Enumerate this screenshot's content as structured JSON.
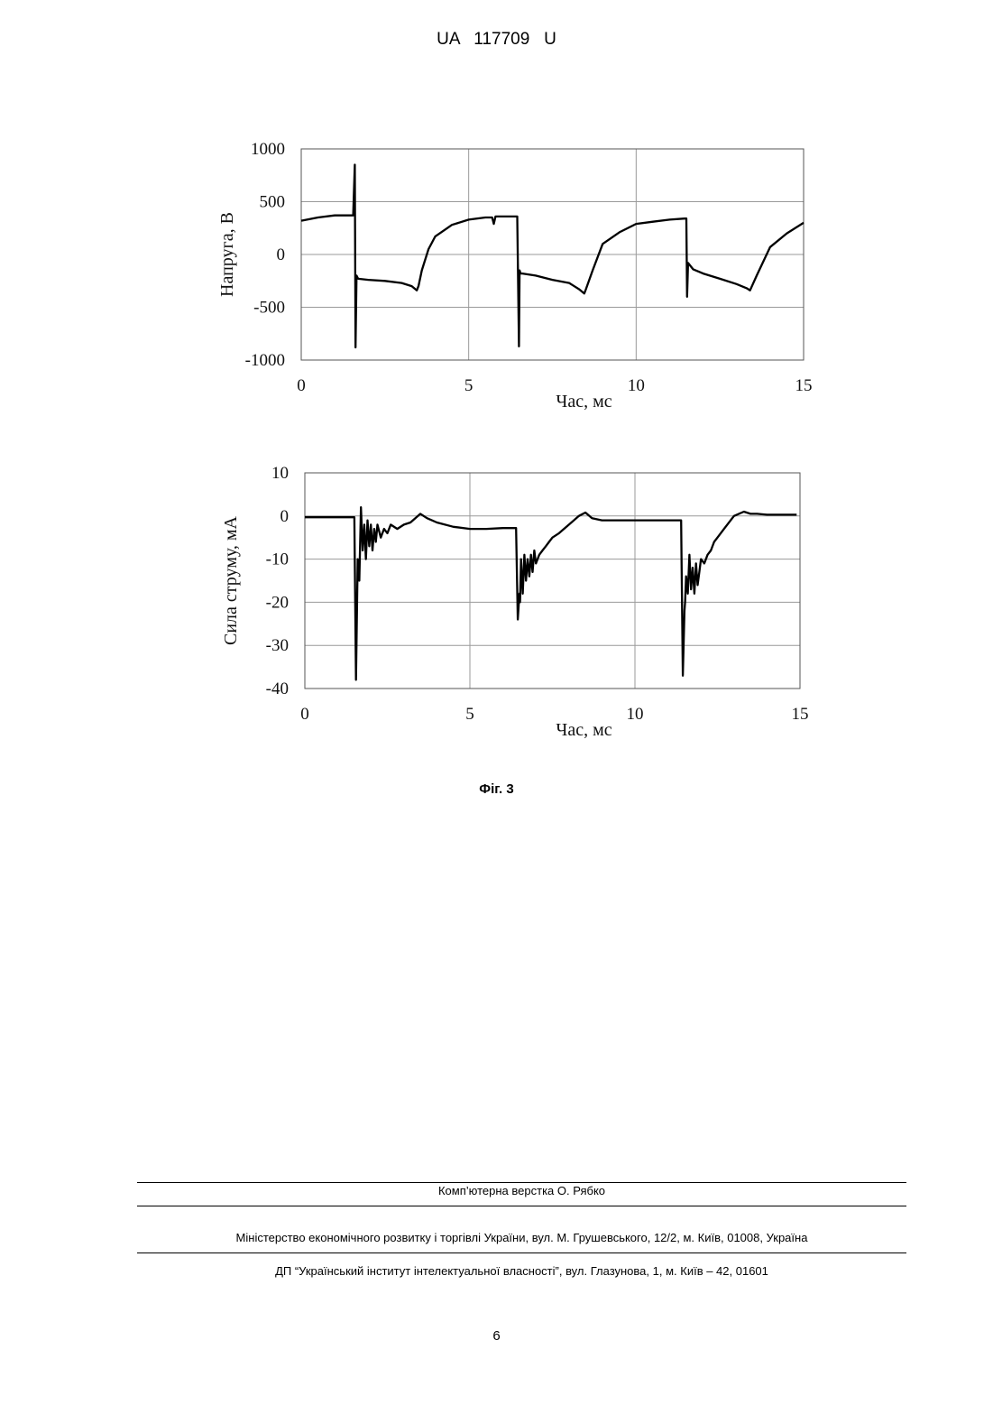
{
  "header": {
    "doc_id": "UA   117709   U"
  },
  "figure_caption": "Фіг. 3",
  "chart_data": [
    {
      "type": "line",
      "xlabel": "Час, мс",
      "ylabel": "Напруга, В",
      "xlim": [
        0,
        15
      ],
      "ylim": [
        -1000,
        1000
      ],
      "x_ticks": [
        "0",
        "5",
        "10",
        "15"
      ],
      "y_ticks": [
        "1000",
        "500",
        "0",
        "-500",
        "-1000"
      ],
      "grid": true,
      "x": [
        0,
        0.5,
        1.0,
        1.5,
        1.55,
        1.6,
        1.62,
        1.65,
        1.7,
        2.0,
        2.5,
        3.0,
        3.3,
        3.45,
        3.5,
        3.6,
        3.8,
        4.0,
        4.5,
        5.0,
        5.5,
        5.7,
        5.75,
        5.8,
        6.0,
        6.45,
        6.5,
        6.52,
        6.55,
        6.6,
        7.0,
        7.5,
        8.0,
        8.3,
        8.45,
        8.5,
        8.7,
        9.0,
        9.5,
        10.0,
        10.5,
        11.0,
        11.45,
        11.5,
        11.52,
        11.55,
        11.7,
        12.0,
        12.5,
        13.0,
        13.3,
        13.4,
        13.6,
        14.0,
        14.5,
        15.0
      ],
      "values": [
        320,
        350,
        370,
        370,
        370,
        850,
        -880,
        -200,
        -230,
        -240,
        -250,
        -270,
        -300,
        -340,
        -300,
        -150,
        50,
        170,
        280,
        330,
        350,
        350,
        290,
        360,
        360,
        360,
        -870,
        -150,
        -180,
        -180,
        -200,
        -240,
        -270,
        -330,
        -370,
        -330,
        -150,
        100,
        210,
        290,
        310,
        330,
        340,
        340,
        -400,
        -80,
        -140,
        -180,
        -230,
        -280,
        -320,
        -340,
        -200,
        70,
        200,
        300
      ]
    },
    {
      "type": "line",
      "xlabel": "Час, мс",
      "ylabel": "Сила струму, мА",
      "xlim": [
        0,
        15
      ],
      "ylim": [
        -40,
        10
      ],
      "x_ticks": [
        "0",
        "5",
        "10",
        "15"
      ],
      "y_ticks": [
        "10",
        "0",
        "-10",
        "-20",
        "-30",
        "-40"
      ],
      "grid": true,
      "x": [
        0,
        0.5,
        1.0,
        1.4,
        1.5,
        1.55,
        1.6,
        1.65,
        1.7,
        1.75,
        1.8,
        1.85,
        1.9,
        1.95,
        2.0,
        2.05,
        2.1,
        2.15,
        2.2,
        2.3,
        2.4,
        2.5,
        2.6,
        2.8,
        3.0,
        3.2,
        3.5,
        3.7,
        4.0,
        4.5,
        5.0,
        5.5,
        6.0,
        6.4,
        6.45,
        6.5,
        6.52,
        6.55,
        6.6,
        6.65,
        6.7,
        6.75,
        6.8,
        6.85,
        6.9,
        6.95,
        7.0,
        7.1,
        7.2,
        7.3,
        7.4,
        7.5,
        7.7,
        8.0,
        8.3,
        8.5,
        8.7,
        9.0,
        9.5,
        10.0,
        10.5,
        11.0,
        11.4,
        11.45,
        11.5,
        11.52,
        11.55,
        11.6,
        11.65,
        11.7,
        11.75,
        11.8,
        11.85,
        11.9,
        11.95,
        12.0,
        12.1,
        12.2,
        12.3,
        12.4,
        12.5,
        12.7,
        13.0,
        13.3,
        13.5,
        13.7,
        14.0,
        14.5,
        14.9
      ],
      "values": [
        -0.3,
        -0.3,
        -0.3,
        -0.3,
        -0.3,
        -38,
        -10,
        -15,
        2,
        -8,
        -2,
        -10,
        -1,
        -7,
        -2,
        -8,
        -3,
        -6,
        -2,
        -5,
        -3,
        -4,
        -2,
        -3,
        -2,
        -1.5,
        0.5,
        -0.5,
        -1.5,
        -2.5,
        -3.0,
        -3.0,
        -2.8,
        -2.8,
        -24,
        -18,
        -20,
        -10,
        -18,
        -9,
        -15,
        -10,
        -14,
        -9,
        -13,
        -8,
        -11,
        -9,
        -8,
        -7,
        -6,
        -5,
        -4,
        -2,
        0,
        0.8,
        -0.5,
        -1.0,
        -1.0,
        -1.0,
        -1.0,
        -1.0,
        -1.0,
        -37,
        -22,
        -20,
        -14,
        -18,
        -9,
        -17,
        -12,
        -18,
        -11,
        -16,
        -13,
        -10,
        -11,
        -9,
        -8,
        -6,
        -5,
        -3,
        0,
        1.0,
        0.5,
        0.5,
        0.3,
        0.3,
        0.3
      ]
    }
  ],
  "footer": {
    "typeset": "Комп’ютерна верстка О. Рябко",
    "ministry": "Міністерство економічного розвитку і торгівлі України, вул. М. Грушевського, 12/2, м. Київ, 01008, Україна",
    "institute": "ДП “Український інститут інтелектуальної власності”, вул. Глазунова, 1, м. Київ – 42, 01601",
    "page_number": "6"
  }
}
